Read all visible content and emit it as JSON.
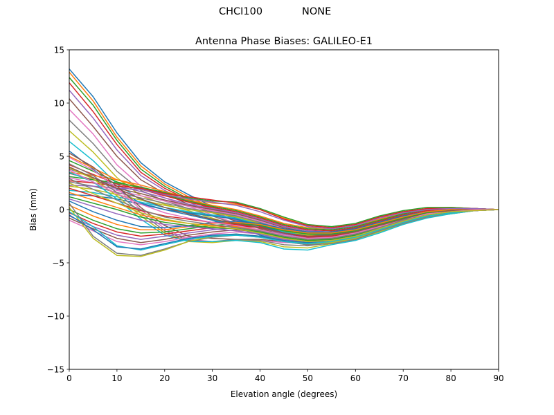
{
  "header": {
    "station": "CHCI100",
    "radome": "NONE"
  },
  "chart_data": {
    "type": "line",
    "title": "Antenna Phase Biases: GALILEO-E1",
    "xlabel": "Elevation angle (degrees)",
    "ylabel": "Bias (mm)",
    "xlim": [
      0,
      90
    ],
    "ylim": [
      -15,
      15
    ],
    "xticks": [
      0,
      10,
      20,
      30,
      40,
      50,
      60,
      70,
      80,
      90
    ],
    "yticks": [
      -15,
      -10,
      -5,
      0,
      5,
      10,
      15
    ],
    "xtick_labels": [
      "0",
      "10",
      "20",
      "30",
      "40",
      "50",
      "60",
      "70",
      "80",
      "90"
    ],
    "ytick_labels": [
      "−15",
      "−10",
      "−5",
      "0",
      "5",
      "10",
      "15"
    ],
    "grid": false,
    "legend": "none",
    "colors": [
      "#1f77b4",
      "#ff7f0e",
      "#2ca02c",
      "#d62728",
      "#9467bd",
      "#8c564b",
      "#e377c2",
      "#7f7f7f",
      "#bcbd22",
      "#17becf"
    ],
    "x": [
      0,
      5,
      10,
      15,
      20,
      25,
      30,
      35,
      40,
      45,
      50,
      55,
      60,
      65,
      70,
      75,
      80,
      85,
      90
    ],
    "series": [
      {
        "values": [
          13.2,
          10.6,
          7.2,
          4.4,
          2.6,
          1.4,
          0.3,
          -0.6,
          -1.3,
          -1.9,
          -2.2,
          -2.1,
          -1.7,
          -1.1,
          -0.5,
          -0.1,
          0.1,
          0.1,
          0.0
        ]
      },
      {
        "values": [
          12.9,
          10.2,
          6.8,
          4.1,
          2.4,
          1.2,
          0.2,
          -0.7,
          -1.4,
          -2.0,
          -2.3,
          -2.2,
          -1.8,
          -1.2,
          -0.6,
          -0.2,
          0.0,
          0.1,
          0.0
        ]
      },
      {
        "values": [
          12.4,
          9.8,
          6.5,
          3.8,
          2.2,
          1.0,
          0.1,
          -0.8,
          -1.5,
          -2.1,
          -2.4,
          -2.3,
          -1.9,
          -1.3,
          -0.7,
          -0.3,
          -0.1,
          0.0,
          0.0
        ]
      },
      {
        "values": [
          11.9,
          9.2,
          6.1,
          3.5,
          2.0,
          0.9,
          0.0,
          -0.9,
          -1.6,
          -2.2,
          -2.5,
          -2.4,
          -2.0,
          -1.4,
          -0.8,
          -0.3,
          -0.1,
          0.0,
          0.0
        ]
      },
      {
        "values": [
          11.2,
          8.6,
          5.6,
          3.2,
          1.8,
          0.7,
          -0.2,
          -1.0,
          -1.7,
          -2.3,
          -2.6,
          -2.5,
          -2.1,
          -1.5,
          -0.9,
          -0.4,
          -0.2,
          0.0,
          0.0
        ]
      },
      {
        "values": [
          10.4,
          7.8,
          5.0,
          2.8,
          1.5,
          0.5,
          -0.3,
          -1.1,
          -1.8,
          -2.4,
          -2.7,
          -2.6,
          -2.2,
          -1.6,
          -0.9,
          -0.4,
          -0.2,
          -0.1,
          0.0
        ]
      },
      {
        "values": [
          9.4,
          7.1,
          4.2,
          2.2,
          1.1,
          0.3,
          -0.5,
          -1.3,
          -2.0,
          -2.6,
          -2.9,
          -2.8,
          -2.4,
          -1.7,
          -1.0,
          -0.5,
          -0.2,
          -0.1,
          0.0
        ]
      },
      {
        "values": [
          8.4,
          6.2,
          3.6,
          1.8,
          0.8,
          0.1,
          -0.6,
          -1.4,
          -2.1,
          -2.7,
          -3.0,
          -2.9,
          -2.5,
          -1.8,
          -1.1,
          -0.5,
          -0.3,
          -0.1,
          0.0
        ]
      },
      {
        "values": [
          7.4,
          5.4,
          3.0,
          1.3,
          0.5,
          -0.1,
          -0.8,
          -1.5,
          -2.2,
          -2.8,
          -3.1,
          -3.0,
          -2.6,
          -1.9,
          -1.2,
          -0.6,
          -0.3,
          -0.1,
          0.0
        ]
      },
      {
        "values": [
          6.4,
          4.6,
          2.4,
          0.9,
          0.2,
          -0.3,
          -0.9,
          -1.6,
          -2.3,
          -2.9,
          -3.2,
          -3.1,
          -2.7,
          -2.0,
          -1.2,
          -0.6,
          -0.3,
          -0.1,
          0.0
        ]
      },
      {
        "values": [
          5.5,
          3.8,
          1.9,
          0.6,
          0.0,
          -0.5,
          -1.0,
          -1.7,
          -2.4,
          -3.0,
          -3.3,
          -3.2,
          -2.8,
          -2.0,
          -1.3,
          -0.7,
          -0.4,
          -0.1,
          0.0
        ]
      },
      {
        "values": [
          5.0,
          3.9,
          2.8,
          2.1,
          1.5,
          0.9,
          0.4,
          0.0,
          -0.6,
          -1.3,
          -1.7,
          -1.8,
          -1.5,
          -0.9,
          -0.3,
          0.1,
          0.2,
          0.1,
          0.0
        ]
      },
      {
        "values": [
          4.6,
          3.6,
          2.6,
          2.0,
          1.4,
          0.8,
          0.3,
          -0.1,
          -0.7,
          -1.4,
          -1.8,
          -1.9,
          -1.6,
          -1.0,
          -0.4,
          0.0,
          0.1,
          0.1,
          0.0
        ]
      },
      {
        "values": [
          4.2,
          3.3,
          2.4,
          1.9,
          1.3,
          0.7,
          0.2,
          -0.2,
          -0.8,
          -1.5,
          -1.9,
          -2.0,
          -1.7,
          -1.1,
          -0.5,
          -0.1,
          0.1,
          0.1,
          0.0
        ]
      },
      {
        "values": [
          3.8,
          3.0,
          2.2,
          1.7,
          1.1,
          0.5,
          0.1,
          -0.3,
          -0.9,
          -1.6,
          -2.0,
          -2.1,
          -1.8,
          -1.2,
          -0.6,
          -0.2,
          0.0,
          0.0,
          0.0
        ]
      },
      {
        "values": [
          3.4,
          2.8,
          2.0,
          1.5,
          0.9,
          0.4,
          0.0,
          -0.4,
          -1.0,
          -1.7,
          -2.1,
          -2.2,
          -1.9,
          -1.3,
          -0.7,
          -0.3,
          0.0,
          0.0,
          0.0
        ]
      },
      {
        "values": [
          3.0,
          2.5,
          1.8,
          1.3,
          0.8,
          0.3,
          -0.1,
          -0.5,
          -1.1,
          -1.8,
          -2.2,
          -2.3,
          -2.0,
          -1.4,
          -0.8,
          -0.3,
          -0.1,
          0.0,
          0.0
        ]
      },
      {
        "values": [
          2.6,
          2.2,
          1.6,
          1.1,
          0.6,
          0.1,
          -0.2,
          -0.6,
          -1.2,
          -1.9,
          -2.3,
          -2.4,
          -2.1,
          -1.5,
          -0.9,
          -0.4,
          -0.1,
          0.0,
          0.0
        ]
      },
      {
        "values": [
          2.2,
          1.9,
          1.4,
          0.9,
          0.4,
          0.0,
          -0.3,
          -0.7,
          -1.3,
          -2.0,
          -2.4,
          -2.5,
          -2.2,
          -1.6,
          -0.9,
          -0.4,
          -0.2,
          0.0,
          0.0
        ]
      },
      {
        "values": [
          1.8,
          1.6,
          1.2,
          0.7,
          0.2,
          -0.2,
          -0.5,
          -0.8,
          -1.4,
          -2.1,
          -2.5,
          -2.6,
          -2.3,
          -1.7,
          -1.0,
          -0.5,
          -0.2,
          -0.1,
          0.0
        ]
      },
      {
        "values": [
          1.4,
          1.3,
          1.0,
          0.5,
          0.0,
          -0.3,
          -0.6,
          -0.9,
          -1.5,
          -2.2,
          -2.6,
          -2.7,
          -2.4,
          -1.8,
          -1.1,
          -0.5,
          -0.2,
          -0.1,
          0.0
        ]
      },
      {
        "values": [
          3.5,
          3.2,
          2.8,
          2.3,
          1.7,
          1.1,
          0.6,
          0.5,
          0.0,
          -0.8,
          -1.5,
          -1.7,
          -1.4,
          -0.7,
          -0.2,
          0.1,
          0.2,
          0.1,
          0.0
        ]
      },
      {
        "values": [
          3.1,
          2.8,
          2.5,
          2.1,
          1.6,
          1.1,
          0.8,
          0.7,
          0.1,
          -0.7,
          -1.4,
          -1.6,
          -1.3,
          -0.6,
          -0.1,
          0.2,
          0.2,
          0.1,
          0.0
        ]
      },
      {
        "values": [
          2.7,
          2.5,
          2.2,
          2.0,
          1.5,
          1.2,
          0.9,
          0.6,
          0.0,
          -0.9,
          -1.5,
          -1.7,
          -1.4,
          -0.7,
          -0.2,
          0.1,
          0.1,
          0.1,
          0.0
        ]
      },
      {
        "values": [
          2.3,
          2.2,
          2.0,
          1.9,
          1.4,
          1.0,
          0.7,
          0.4,
          -0.2,
          -1.0,
          -1.6,
          -1.8,
          -1.5,
          -0.8,
          -0.3,
          0.0,
          0.1,
          0.1,
          0.0
        ]
      },
      {
        "values": [
          5.3,
          4.0,
          2.2,
          0.2,
          -1.5,
          -2.5,
          -2.7,
          -2.8,
          -2.8,
          -3.0,
          -3.0,
          -2.9,
          -2.5,
          -1.9,
          -1.2,
          -0.6,
          -0.3,
          -0.1,
          0.0
        ]
      },
      {
        "values": [
          4.9,
          3.7,
          2.0,
          0.0,
          -1.8,
          -2.8,
          -3.0,
          -2.9,
          -2.9,
          -3.1,
          -3.1,
          -3.0,
          -2.6,
          -2.0,
          -1.3,
          -0.7,
          -0.3,
          -0.1,
          0.0
        ]
      },
      {
        "values": [
          4.3,
          3.2,
          1.6,
          -0.3,
          -2.0,
          -2.9,
          -3.0,
          -2.8,
          -2.9,
          -3.3,
          -3.4,
          -3.1,
          -2.7,
          -2.0,
          -1.3,
          -0.7,
          -0.3,
          -0.1,
          0.0
        ]
      },
      {
        "values": [
          3.9,
          2.9,
          1.3,
          -0.6,
          -2.2,
          -3.0,
          -3.1,
          -2.9,
          -3.0,
          -3.5,
          -3.6,
          -3.2,
          -2.8,
          -2.1,
          -1.4,
          -0.7,
          -0.4,
          -0.1,
          0.0
        ]
      },
      {
        "values": [
          3.5,
          2.6,
          1.0,
          -0.9,
          -2.4,
          -3.0,
          -3.0,
          -2.9,
          -3.1,
          -3.7,
          -3.8,
          -3.3,
          -2.9,
          -2.2,
          -1.4,
          -0.8,
          -0.4,
          -0.1,
          0.0
        ]
      },
      {
        "values": [
          0.8,
          -0.2,
          -1.0,
          -1.6,
          -1.7,
          -1.5,
          -1.2,
          -1.1,
          -1.3,
          -1.8,
          -2.1,
          -2.1,
          -1.8,
          -1.2,
          -0.6,
          -0.2,
          0.0,
          0.0,
          0.0
        ]
      },
      {
        "values": [
          0.4,
          -0.6,
          -1.4,
          -1.9,
          -1.9,
          -1.6,
          -1.3,
          -1.2,
          -1.4,
          -1.9,
          -2.2,
          -2.2,
          -1.9,
          -1.3,
          -0.7,
          -0.2,
          0.0,
          0.0,
          0.0
        ]
      },
      {
        "values": [
          0.0,
          -1.0,
          -1.8,
          -2.2,
          -2.1,
          -1.8,
          -1.5,
          -1.3,
          -1.5,
          -2.0,
          -2.3,
          -2.3,
          -2.0,
          -1.4,
          -0.8,
          -0.3,
          -0.1,
          0.0,
          0.0
        ]
      },
      {
        "values": [
          -0.3,
          -1.3,
          -2.1,
          -2.5,
          -2.3,
          -2.0,
          -1.7,
          -1.5,
          -1.7,
          -2.2,
          -2.5,
          -2.4,
          -2.1,
          -1.5,
          -0.9,
          -0.4,
          -0.1,
          0.0,
          0.0
        ]
      },
      {
        "values": [
          -0.6,
          -1.6,
          -2.4,
          -2.8,
          -2.5,
          -2.2,
          -1.9,
          -1.7,
          -1.9,
          -2.4,
          -2.7,
          -2.6,
          -2.2,
          -1.6,
          -1.0,
          -0.4,
          -0.2,
          0.0,
          0.0
        ]
      },
      {
        "values": [
          -0.8,
          -1.8,
          -2.7,
          -3.1,
          -2.8,
          -2.4,
          -2.1,
          -1.9,
          -2.1,
          -2.6,
          -2.9,
          -2.8,
          -2.4,
          -1.7,
          -1.1,
          -0.5,
          -0.2,
          -0.1,
          0.0
        ]
      },
      {
        "values": [
          -1.0,
          -2.0,
          -3.0,
          -3.3,
          -3.0,
          -2.6,
          -2.3,
          -2.1,
          -2.3,
          -2.8,
          -3.1,
          -2.9,
          -2.5,
          -1.8,
          -1.1,
          -0.5,
          -0.2,
          -0.1,
          0.0
        ]
      },
      {
        "values": [
          0.6,
          -2.5,
          -4.1,
          -4.3,
          -3.7,
          -3.0,
          -2.6,
          -2.4,
          -2.6,
          -3.0,
          -3.3,
          -3.2,
          -2.8,
          -2.0,
          -1.3,
          -0.7,
          -0.3,
          -0.1,
          0.0
        ]
      },
      {
        "values": [
          0.2,
          -2.7,
          -4.3,
          -4.4,
          -3.8,
          -3.0,
          -2.5,
          -2.3,
          -2.5,
          -2.9,
          -3.2,
          -3.1,
          -2.7,
          -1.9,
          -1.2,
          -0.6,
          -0.3,
          -0.1,
          0.0
        ]
      },
      {
        "values": [
          -0.2,
          -1.6,
          -3.4,
          -3.8,
          -3.3,
          -2.8,
          -2.5,
          -2.4,
          -2.6,
          -3.0,
          -3.2,
          -3.0,
          -2.6,
          -1.9,
          -1.2,
          -0.6,
          -0.3,
          -0.1,
          0.0
        ]
      },
      {
        "values": [
          -0.5,
          -1.9,
          -3.5,
          -3.7,
          -3.2,
          -2.7,
          -2.4,
          -2.3,
          -2.5,
          -2.9,
          -3.1,
          -2.9,
          -2.5,
          -1.8,
          -1.1,
          -0.5,
          -0.2,
          -0.1,
          0.0
        ]
      },
      {
        "values": [
          1.6,
          0.9,
          0.2,
          -0.5,
          -1.0,
          -1.3,
          -1.5,
          -1.6,
          -1.9,
          -2.4,
          -2.8,
          -2.7,
          -2.3,
          -1.6,
          -1.0,
          -0.4,
          -0.2,
          0.0,
          0.0
        ]
      },
      {
        "values": [
          1.2,
          0.6,
          0.0,
          -0.7,
          -1.2,
          -1.5,
          -1.7,
          -1.8,
          -2.1,
          -2.6,
          -2.9,
          -2.8,
          -2.4,
          -1.7,
          -1.0,
          -0.5,
          -0.2,
          0.0,
          0.0
        ]
      },
      {
        "values": [
          2.0,
          1.3,
          0.6,
          -0.1,
          -0.6,
          -0.9,
          -1.2,
          -1.4,
          -1.7,
          -2.2,
          -2.6,
          -2.5,
          -2.2,
          -1.5,
          -0.9,
          -0.4,
          -0.1,
          0.0,
          0.0
        ]
      },
      {
        "values": [
          1.0,
          0.3,
          -0.4,
          -1.0,
          -1.4,
          -1.6,
          -1.8,
          -2.0,
          -2.3,
          -2.8,
          -3.0,
          -2.9,
          -2.5,
          -1.8,
          -1.1,
          -0.5,
          -0.2,
          -0.1,
          0.0
        ]
      },
      {
        "values": [
          4.0,
          3.0,
          2.0,
          1.0,
          0.2,
          -0.4,
          -0.9,
          -1.3,
          -1.7,
          -2.2,
          -2.5,
          -2.4,
          -2.1,
          -1.5,
          -0.9,
          -0.4,
          -0.1,
          0.0,
          0.0
        ]
      },
      {
        "values": [
          3.7,
          2.6,
          1.5,
          0.5,
          -0.3,
          -0.8,
          -1.2,
          -1.5,
          -1.9,
          -2.4,
          -2.7,
          -2.6,
          -2.2,
          -1.6,
          -1.0,
          -0.4,
          -0.2,
          0.0,
          0.0
        ]
      },
      {
        "values": [
          2.9,
          1.9,
          0.9,
          0.0,
          -0.7,
          -1.1,
          -1.4,
          -1.7,
          -2.0,
          -2.5,
          -2.8,
          -2.7,
          -2.3,
          -1.7,
          -1.0,
          -0.5,
          -0.2,
          -0.1,
          0.0
        ]
      },
      {
        "values": [
          2.5,
          1.5,
          0.6,
          -0.3,
          -0.9,
          -1.3,
          -1.6,
          -1.8,
          -2.2,
          -2.7,
          -3.0,
          -2.9,
          -2.5,
          -1.8,
          -1.1,
          -0.5,
          -0.2,
          -0.1,
          0.0
        ]
      }
    ]
  }
}
